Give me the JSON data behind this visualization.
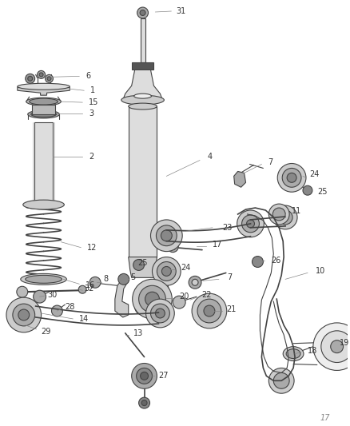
{
  "background_color": "#ffffff",
  "line_color": "#444444",
  "label_color": "#333333",
  "fig_width": 4.38,
  "fig_height": 5.33,
  "dpi": 100
}
